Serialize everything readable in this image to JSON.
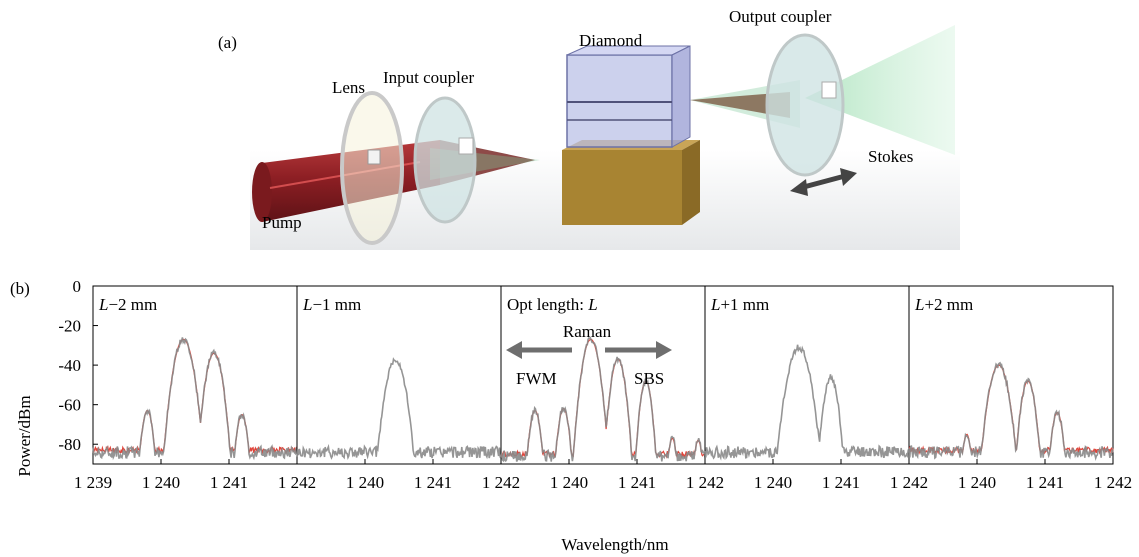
{
  "panel_a": {
    "label": "(a)",
    "labels": {
      "lens": "Lens",
      "input_coupler": "Input coupler",
      "diamond": "Diamond",
      "output_coupler": "Output coupler",
      "stokes": "Stokes",
      "pump": "Pump"
    },
    "colors": {
      "pump": "#8e1f24",
      "stokes_beam": "#8fd3a8",
      "diamond_mount": "#a88432",
      "mirror": "#cfe3e3"
    },
    "icons": [
      "double-arrow-icon"
    ]
  },
  "panel_b": {
    "label": "(b)",
    "annotations": {
      "raman": "Raman",
      "fwm": "FWM",
      "sbs": "SBS"
    },
    "colors": {
      "measured": "#8a8a8a",
      "fit": "#e0443a",
      "arrow": "#6e6e6e"
    }
  },
  "chart_data": {
    "type": "line",
    "ylabel": "Power/dBm",
    "xlabel": "Wavelength/nm",
    "ylim": [
      -90,
      0
    ],
    "yticks": [
      0,
      -20,
      -40,
      -60,
      -80
    ],
    "ytick_labels": [
      "0",
      "-20",
      "-40",
      "-60",
      "-80"
    ],
    "xtick_labels": [
      "1 239",
      "1 240",
      "1 241",
      "1 242",
      "1 240",
      "1 241",
      "1 242",
      "1 240",
      "1 241",
      "1 242",
      "1 240",
      "1 241",
      "1 242",
      "1 240",
      "1 241",
      "1 242"
    ],
    "subplot_xlim": [
      1239,
      1242
    ],
    "subplots": [
      {
        "title_italic": "L",
        "title_rest": "−2 mm",
        "noise_floor": -84,
        "peaks": [
          [
            1239.8,
            -63,
            0.05
          ],
          [
            1240.33,
            -27,
            0.08
          ],
          [
            1240.78,
            -34,
            0.07
          ],
          [
            1241.19,
            -65,
            0.05
          ]
        ],
        "has_fit": true
      },
      {
        "title_italic": "L",
        "title_rest": "−1 mm",
        "noise_floor": -84,
        "peaks": [
          [
            1240.45,
            -37,
            0.08
          ]
        ],
        "has_fit": false
      },
      {
        "title_prefix": "Opt length: ",
        "title_italic": "L",
        "title_rest": "",
        "noise_floor": -86,
        "peaks": [
          [
            1239.5,
            -63,
            0.05
          ],
          [
            1239.92,
            -62,
            0.05
          ],
          [
            1240.32,
            -27,
            0.07
          ],
          [
            1240.72,
            -37,
            0.06
          ],
          [
            1241.13,
            -48,
            0.05
          ],
          [
            1241.52,
            -77,
            0.04
          ],
          [
            1241.9,
            -78,
            0.04
          ]
        ],
        "has_fit": true
      },
      {
        "title_italic": "L",
        "title_rest": "+1 mm",
        "noise_floor": -84,
        "peaks": [
          [
            1240.38,
            -31,
            0.09
          ],
          [
            1240.85,
            -46,
            0.06
          ]
        ],
        "has_fit": false
      },
      {
        "title_italic": "L",
        "title_rest": "+2 mm",
        "noise_floor": -84,
        "peaks": [
          [
            1239.85,
            -75,
            0.04
          ],
          [
            1240.32,
            -40,
            0.08
          ],
          [
            1240.75,
            -48,
            0.06
          ],
          [
            1241.18,
            -64,
            0.05
          ]
        ],
        "has_fit": true
      }
    ]
  }
}
